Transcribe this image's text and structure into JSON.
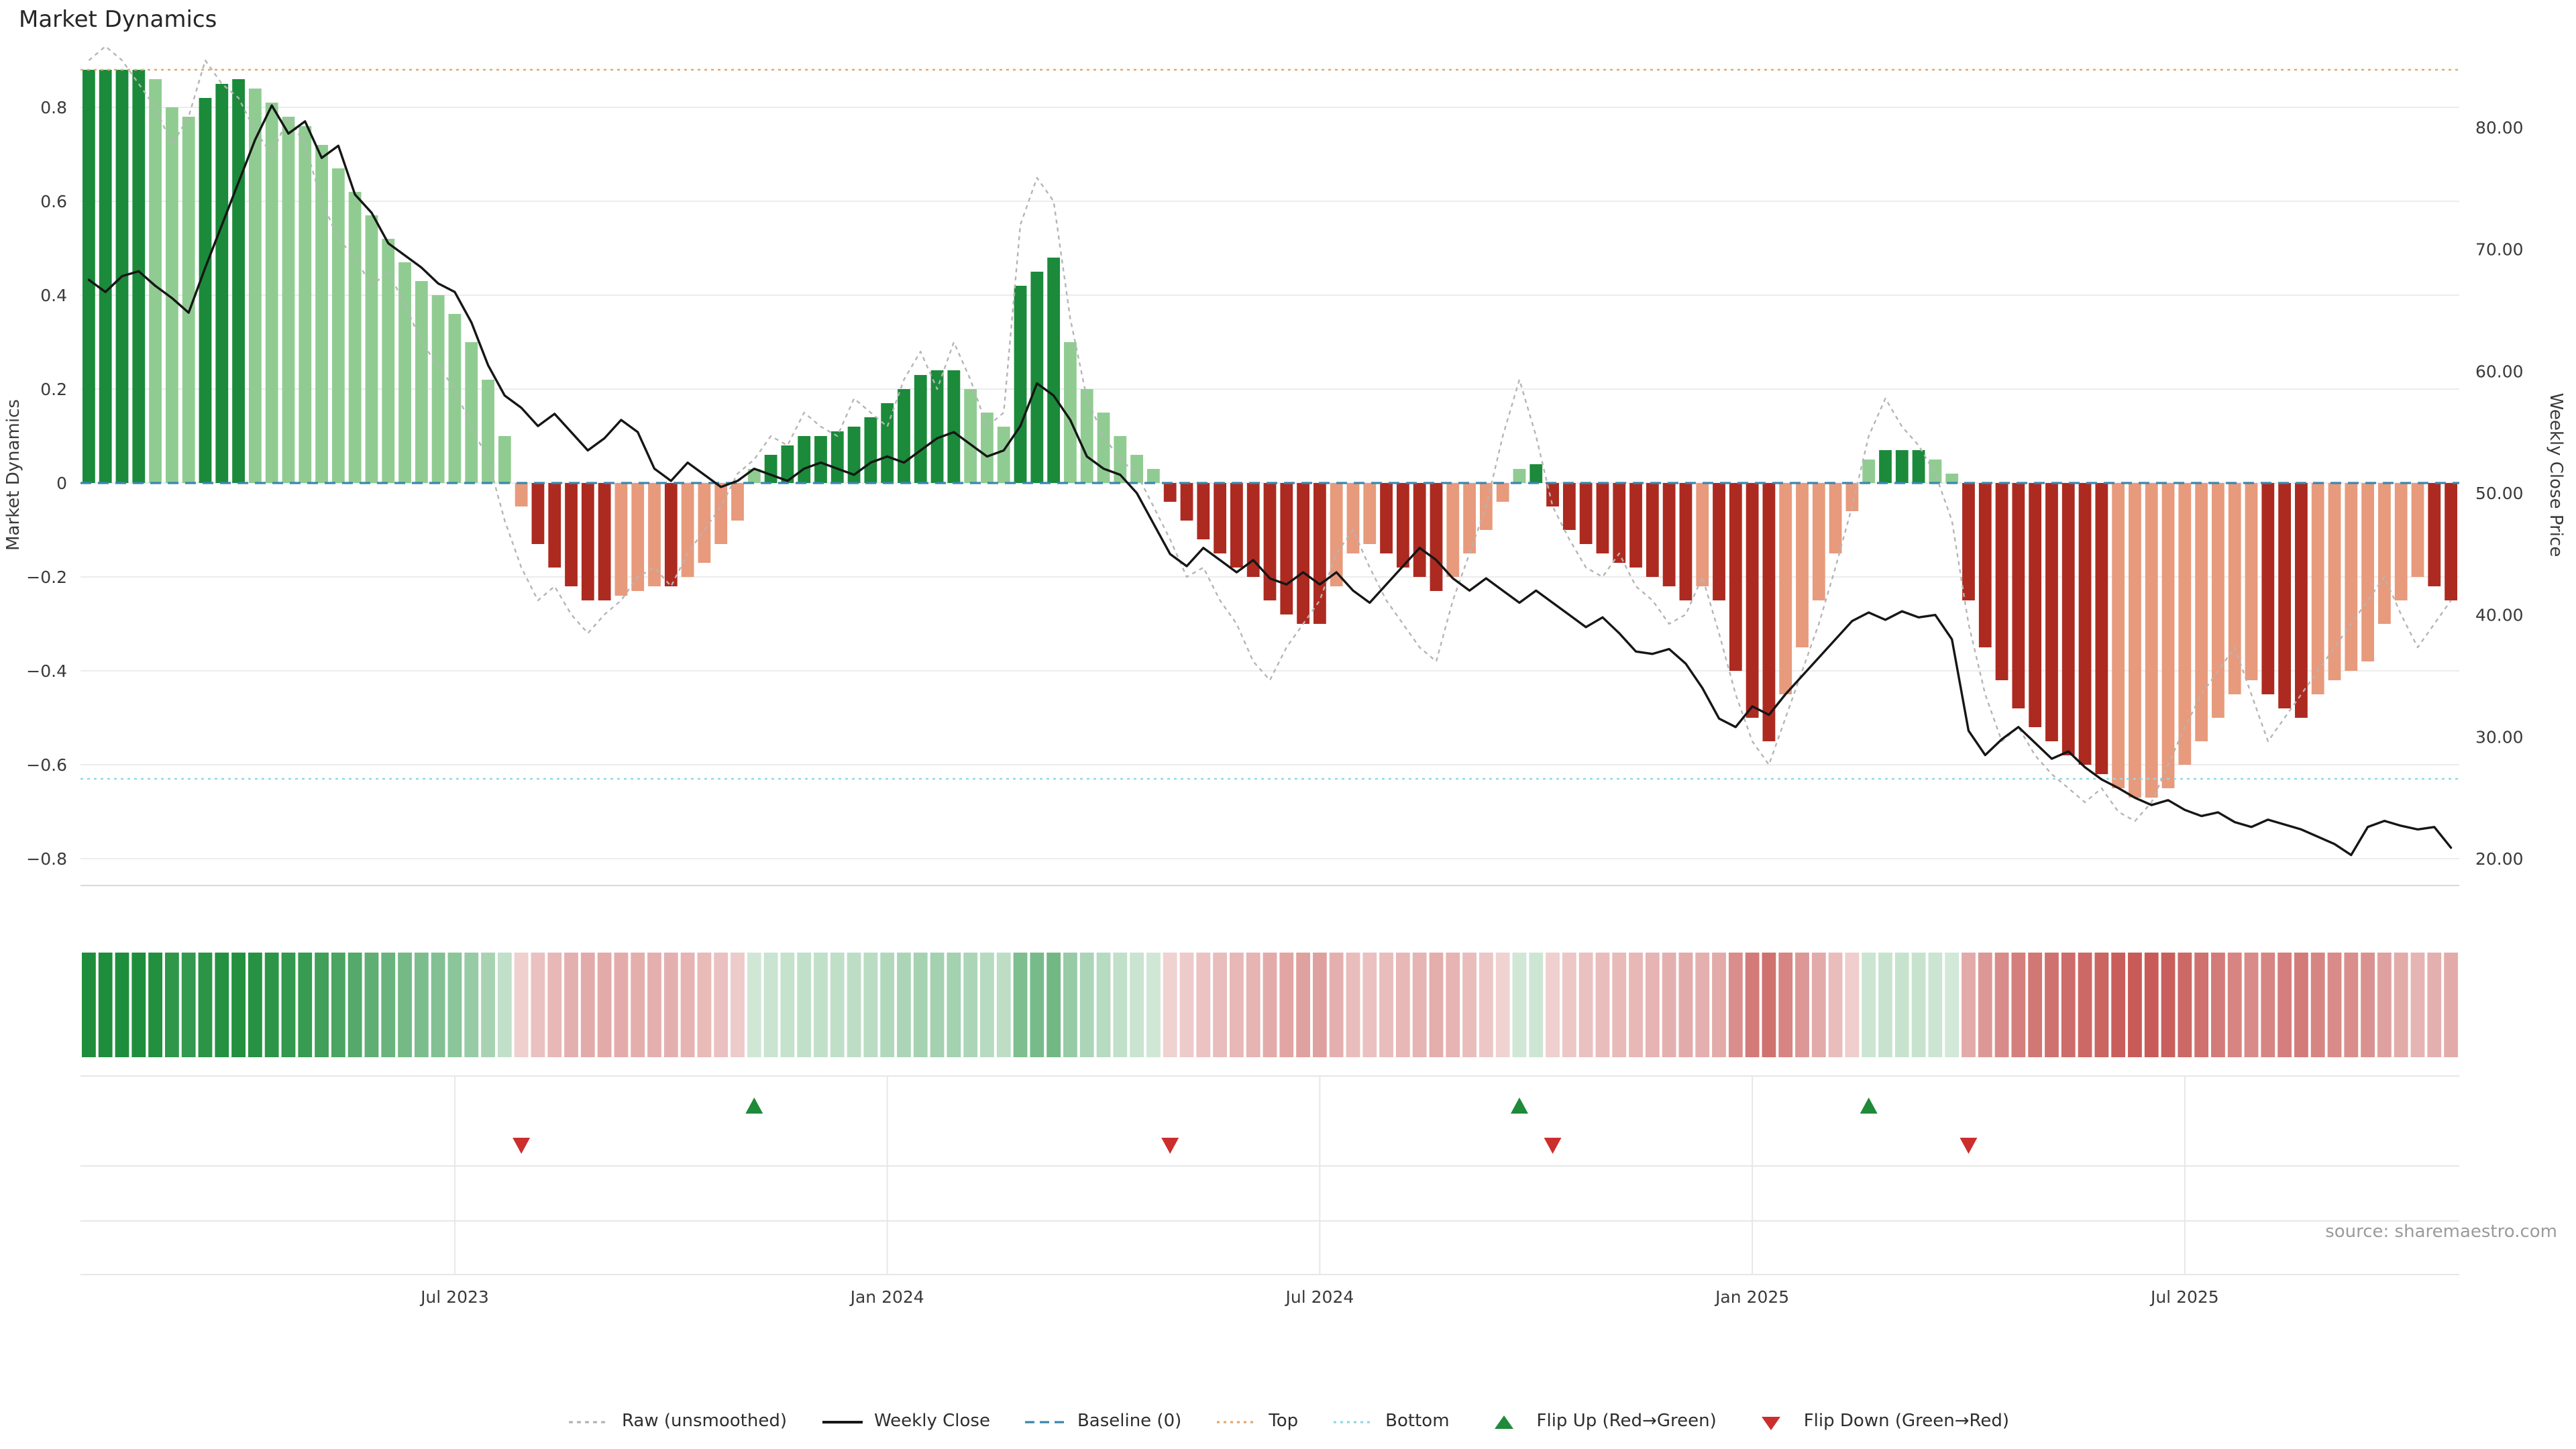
{
  "title": "Market Dynamics",
  "source": "source: sharemaestro.com",
  "axes": {
    "left_label": "Market Dynamics",
    "right_label": "Weekly Close Price",
    "left_ticks": [
      {
        "v": 0.8,
        "label": "0.8"
      },
      {
        "v": 0.6,
        "label": "0.6"
      },
      {
        "v": 0.4,
        "label": "0.4"
      },
      {
        "v": 0.2,
        "label": "0.2"
      },
      {
        "v": 0.0,
        "label": "0"
      },
      {
        "v": -0.2,
        "label": "−0.2"
      },
      {
        "v": -0.4,
        "label": "−0.4"
      },
      {
        "v": -0.6,
        "label": "−0.6"
      },
      {
        "v": -0.8,
        "label": "−0.8"
      }
    ],
    "right_ticks": [
      {
        "v": 80,
        "label": "80.00"
      },
      {
        "v": 70,
        "label": "70.00"
      },
      {
        "v": 60,
        "label": "60.00"
      },
      {
        "v": 50,
        "label": "50.00"
      },
      {
        "v": 40,
        "label": "40.00"
      },
      {
        "v": 30,
        "label": "30.00"
      },
      {
        "v": 20,
        "label": "20.00"
      }
    ],
    "x_ticks": [
      {
        "week": 22,
        "label": "Jul 2023"
      },
      {
        "week": 48,
        "label": "Jan 2024"
      },
      {
        "week": 74,
        "label": "Jul 2024"
      },
      {
        "week": 100,
        "label": "Jan 2025"
      },
      {
        "week": 126,
        "label": "Jul 2025"
      }
    ]
  },
  "colors": {
    "bar_green_dark": "#1b8a3a",
    "bar_green_light": "#90cc92",
    "bar_red_dark": "#ad2a20",
    "bar_red_light": "#e89a7c",
    "close_line": "#161616",
    "raw_line": "#b5b5b5",
    "baseline": "#3a87ad",
    "top_line": "#e2a76f",
    "bottom_line": "#8fd9e6",
    "flip_up": "#1e8a3a",
    "flip_down": "#cc2e2e",
    "grid": "#ececec",
    "band_grid": "#e7e7e7",
    "spine": "#d9d9d9",
    "heat_green": [
      26,
      140,
      56
    ],
    "heat_red": [
      185,
      48,
      44
    ]
  },
  "legend": [
    {
      "label": "Raw (unsmoothed)",
      "swatch": "line-dot-dash",
      "color": "#b5b5b5"
    },
    {
      "label": "Weekly Close",
      "swatch": "line-solid",
      "color": "#161616"
    },
    {
      "label": "Baseline (0)",
      "swatch": "line-dash",
      "color": "#3a87ad"
    },
    {
      "label": "Top",
      "swatch": "line-dot",
      "color": "#e2a76f"
    },
    {
      "label": "Bottom",
      "swatch": "line-dot",
      "color": "#8fd9e6"
    },
    {
      "label": "Flip Up (Red→Green)",
      "swatch": "tri-up",
      "color": "#1e8a3a"
    },
    {
      "label": "Flip Down (Green→Red)",
      "swatch": "tri-down",
      "color": "#cc2e2e"
    }
  ],
  "chart_data": {
    "type": "bar",
    "title": "Market Dynamics",
    "xlabel": "",
    "ylabel_left": "Market Dynamics",
    "ylabel_right": "Weekly Close Price",
    "left_ylim": [
      -0.89,
      0.9
    ],
    "right_ylim": [
      17.8,
      85.2
    ],
    "x_start": "2023-02-03",
    "x_step": "1 week",
    "x_end": "2025-10-24",
    "n_points": 143,
    "grid": true,
    "legend_position": "bottom-center",
    "reference_lines": {
      "baseline": 0,
      "top": 0.88,
      "bottom": -0.63
    },
    "flip_up_weeks": [
      40,
      86,
      107
    ],
    "flip_down_weeks": [
      26,
      65,
      88,
      113
    ],
    "heatmap_source": "dynamics series (green positive / red negative, intensity = |value|)",
    "series": [
      {
        "name": "Market Dynamics (smoothed)",
        "type": "bar",
        "axis": "left",
        "values": [
          0.88,
          0.88,
          0.88,
          0.88,
          0.86,
          0.8,
          0.78,
          0.82,
          0.85,
          0.86,
          0.84,
          0.81,
          0.78,
          0.76,
          0.72,
          0.67,
          0.62,
          0.57,
          0.52,
          0.47,
          0.43,
          0.4,
          0.36,
          0.3,
          0.22,
          0.1,
          -0.05,
          -0.13,
          -0.18,
          -0.22,
          -0.25,
          -0.25,
          -0.24,
          -0.23,
          -0.22,
          -0.22,
          -0.2,
          -0.17,
          -0.13,
          -0.08,
          0.03,
          0.06,
          0.08,
          0.1,
          0.1,
          0.11,
          0.12,
          0.14,
          0.17,
          0.2,
          0.23,
          0.24,
          0.24,
          0.2,
          0.15,
          0.12,
          0.42,
          0.45,
          0.48,
          0.3,
          0.2,
          0.15,
          0.1,
          0.06,
          0.03,
          -0.04,
          -0.08,
          -0.12,
          -0.15,
          -0.18,
          -0.2,
          -0.25,
          -0.28,
          -0.3,
          -0.3,
          -0.22,
          -0.15,
          -0.13,
          -0.15,
          -0.18,
          -0.2,
          -0.23,
          -0.2,
          -0.15,
          -0.1,
          -0.04,
          0.03,
          0.04,
          -0.05,
          -0.1,
          -0.13,
          -0.15,
          -0.17,
          -0.18,
          -0.2,
          -0.22,
          -0.25,
          -0.22,
          -0.25,
          -0.4,
          -0.5,
          -0.55,
          -0.45,
          -0.35,
          -0.25,
          -0.15,
          -0.06,
          0.05,
          0.07,
          0.07,
          0.07,
          0.05,
          0.02,
          -0.25,
          -0.35,
          -0.42,
          -0.48,
          -0.52,
          -0.55,
          -0.58,
          -0.6,
          -0.62,
          -0.65,
          -0.67,
          -0.67,
          -0.65,
          -0.6,
          -0.55,
          -0.5,
          -0.45,
          -0.42,
          -0.45,
          -0.48,
          -0.5,
          -0.45,
          -0.42,
          -0.4,
          -0.38,
          -0.3,
          -0.25,
          -0.2,
          -0.22,
          -0.25
        ]
      },
      {
        "name": "Raw (unsmoothed)",
        "type": "line",
        "axis": "left",
        "values": [
          0.9,
          0.93,
          0.9,
          0.85,
          0.8,
          0.72,
          0.78,
          0.9,
          0.85,
          0.82,
          0.75,
          0.7,
          0.78,
          0.72,
          0.6,
          0.52,
          0.48,
          0.42,
          0.45,
          0.38,
          0.3,
          0.25,
          0.2,
          0.12,
          0.05,
          -0.08,
          -0.18,
          -0.25,
          -0.22,
          -0.28,
          -0.32,
          -0.28,
          -0.25,
          -0.2,
          -0.18,
          -0.22,
          -0.15,
          -0.1,
          -0.05,
          0.02,
          0.05,
          0.1,
          0.08,
          0.15,
          0.12,
          0.1,
          0.18,
          0.15,
          0.12,
          0.22,
          0.28,
          0.2,
          0.3,
          0.22,
          0.12,
          0.15,
          0.55,
          0.65,
          0.6,
          0.35,
          0.18,
          0.1,
          0.05,
          0.02,
          -0.05,
          -0.12,
          -0.2,
          -0.18,
          -0.25,
          -0.3,
          -0.38,
          -0.42,
          -0.35,
          -0.3,
          -0.25,
          -0.15,
          -0.1,
          -0.18,
          -0.25,
          -0.3,
          -0.35,
          -0.38,
          -0.25,
          -0.15,
          -0.05,
          0.1,
          0.22,
          0.1,
          -0.05,
          -0.12,
          -0.18,
          -0.2,
          -0.15,
          -0.22,
          -0.25,
          -0.3,
          -0.28,
          -0.2,
          -0.32,
          -0.45,
          -0.55,
          -0.6,
          -0.5,
          -0.4,
          -0.3,
          -0.18,
          -0.05,
          0.1,
          0.18,
          0.12,
          0.08,
          0.02,
          -0.08,
          -0.3,
          -0.45,
          -0.55,
          -0.52,
          -0.58,
          -0.62,
          -0.65,
          -0.68,
          -0.65,
          -0.7,
          -0.72,
          -0.68,
          -0.6,
          -0.52,
          -0.45,
          -0.4,
          -0.35,
          -0.45,
          -0.55,
          -0.5,
          -0.45,
          -0.4,
          -0.35,
          -0.3,
          -0.25,
          -0.2,
          -0.28,
          -0.35,
          -0.3,
          -0.25
        ]
      },
      {
        "name": "Weekly Close",
        "type": "line",
        "axis": "right",
        "values": [
          67.5,
          66.5,
          67.8,
          68.2,
          67.0,
          66.0,
          64.8,
          68.5,
          72.0,
          75.5,
          79.0,
          81.8,
          79.5,
          80.5,
          77.5,
          78.5,
          74.5,
          73.0,
          70.5,
          69.5,
          68.5,
          67.2,
          66.5,
          64.0,
          60.5,
          58.0,
          57.0,
          55.5,
          56.5,
          55.0,
          53.5,
          54.5,
          56.0,
          55.0,
          52.0,
          51.0,
          52.5,
          51.5,
          50.5,
          51.0,
          52.0,
          51.5,
          51.0,
          52.0,
          52.5,
          52.0,
          51.5,
          52.5,
          53.0,
          52.5,
          53.5,
          54.5,
          55.0,
          54.0,
          53.0,
          53.5,
          55.5,
          59.0,
          58.0,
          56.0,
          53.0,
          52.0,
          51.5,
          50.0,
          47.5,
          45.0,
          44.0,
          45.5,
          44.5,
          43.5,
          44.5,
          43.0,
          42.5,
          43.5,
          42.5,
          43.5,
          42.0,
          41.0,
          42.5,
          44.0,
          45.5,
          44.5,
          43.0,
          42.0,
          43.0,
          42.0,
          41.0,
          42.0,
          41.0,
          40.0,
          39.0,
          39.8,
          38.5,
          37.0,
          36.8,
          37.2,
          36.0,
          34.0,
          31.5,
          30.8,
          32.5,
          31.8,
          33.5,
          35.0,
          36.5,
          38.0,
          39.5,
          40.2,
          39.6,
          40.3,
          39.8,
          40.0,
          38.0,
          30.5,
          28.5,
          29.8,
          30.8,
          29.5,
          28.2,
          28.8,
          27.5,
          26.5,
          25.8,
          25.0,
          24.4,
          24.8,
          24.0,
          23.5,
          23.8,
          23.0,
          22.6,
          23.2,
          22.8,
          22.4,
          21.8,
          21.2,
          20.3,
          22.6,
          23.1,
          22.7,
          22.4,
          22.6,
          20.9
        ]
      }
    ]
  }
}
